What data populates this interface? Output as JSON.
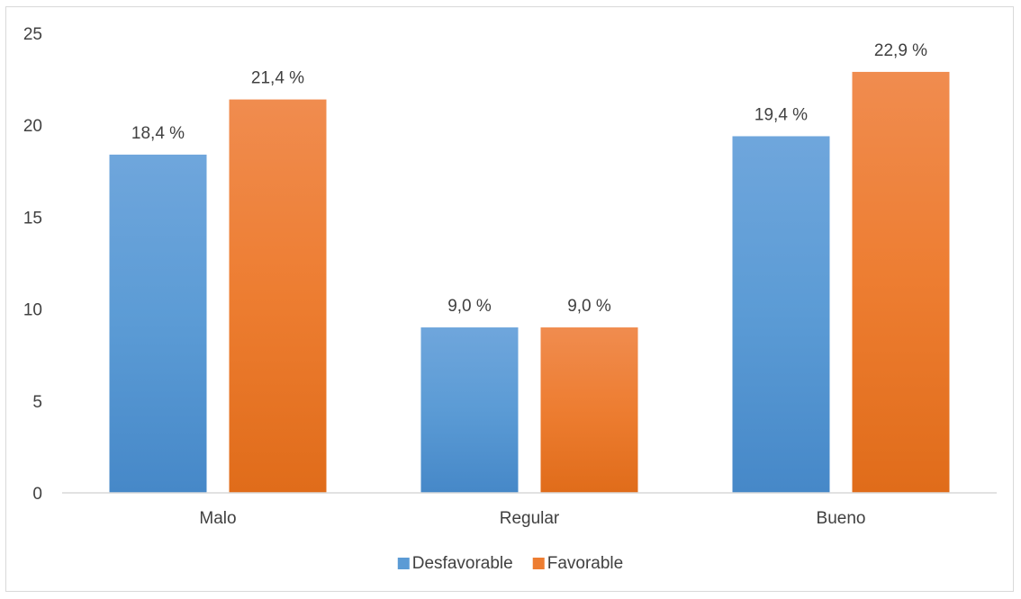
{
  "chart_data": {
    "type": "bar",
    "categories": [
      "Malo",
      "Regular",
      "Bueno"
    ],
    "series": [
      {
        "name": "Desfavorable",
        "values": [
          18.4,
          9.0,
          19.4
        ],
        "labels": [
          "18,4 %",
          "9,0 %",
          "19,4 %"
        ],
        "color": "#5b9bd5",
        "color_light": "#6fa6dc",
        "color_dark": "#4688c8"
      },
      {
        "name": "Favorable",
        "values": [
          21.4,
          9.0,
          22.9
        ],
        "labels": [
          "21,4 %",
          "9,0 %",
          "22,9 %"
        ],
        "color": "#ed7d31",
        "color_light": "#f08c4f",
        "color_dark": "#e06c1a"
      }
    ],
    "ylim": [
      0,
      25
    ],
    "yticks": [
      0,
      5,
      10,
      15,
      20,
      25
    ],
    "grid": false,
    "legend": "bottom",
    "title": "",
    "xlabel": "",
    "ylabel": ""
  }
}
